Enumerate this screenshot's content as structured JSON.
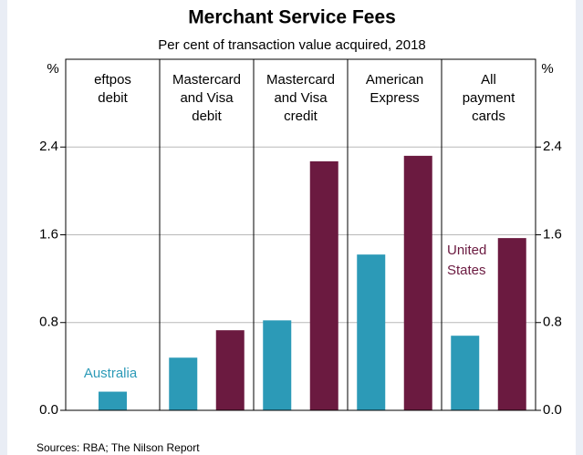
{
  "chart_data": {
    "type": "bar",
    "title": "Merchant Service Fees",
    "subtitle": "Per cent of transaction value acquired, 2018",
    "y_unit": "%",
    "footnote": "Sources: RBA; The Nilson Report",
    "categories": [
      "eftpos\ndebit",
      "Mastercard\nand Visa\ndebit",
      "Mastercard\nand Visa\ncredit",
      "American\nExpress",
      "All\npayment\ncards"
    ],
    "series": [
      {
        "name": "Australia",
        "color": "#2c9ab7",
        "values": [
          0.17,
          0.48,
          0.82,
          1.42,
          0.68
        ]
      },
      {
        "name": "United States",
        "color": "#6b1a40",
        "values": [
          null,
          0.73,
          2.27,
          2.32,
          1.57
        ]
      }
    ],
    "ylim": [
      0,
      3.2
    ],
    "yticks": [
      {
        "value": 0,
        "label": "0.0"
      },
      0.8,
      1.6,
      2.4
    ],
    "grid": true
  }
}
